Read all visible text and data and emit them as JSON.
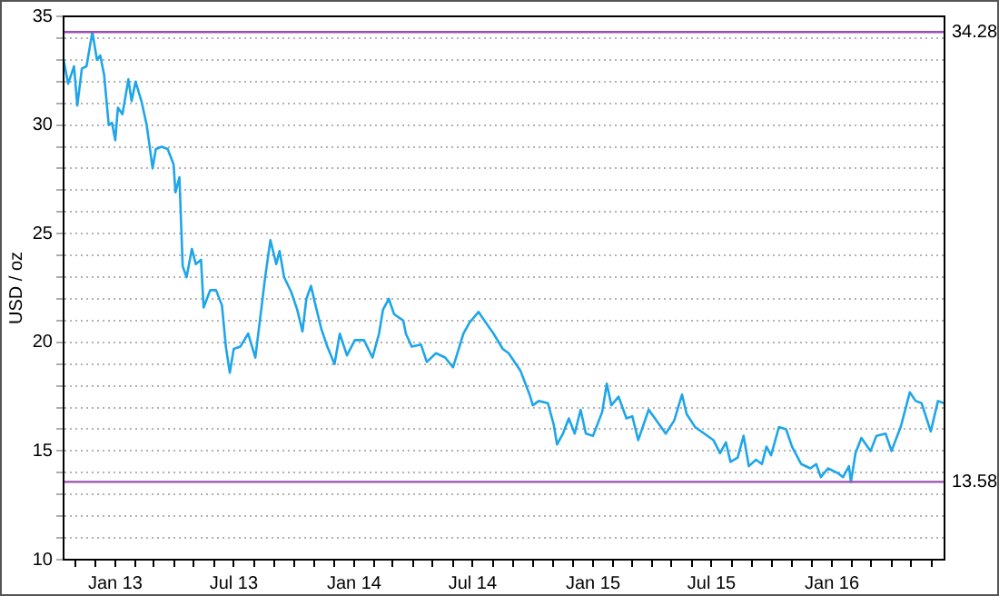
{
  "chart_data": {
    "type": "line",
    "ylabel": "USD / oz",
    "x": [
      "2012-10-14",
      "2012-10-21",
      "2012-10-30",
      "2012-11-04",
      "2012-11-11",
      "2012-11-18",
      "2012-11-27",
      "2012-12-04",
      "2012-12-09",
      "2012-12-15",
      "2012-12-22",
      "2012-12-27",
      "2013-01-01",
      "2013-01-05",
      "2013-01-12",
      "2013-01-21",
      "2013-01-26",
      "2013-02-01",
      "2013-02-10",
      "2013-02-18",
      "2013-02-23",
      "2013-02-27",
      "2013-03-04",
      "2013-03-13",
      "2013-03-22",
      "2013-03-31",
      "2013-04-03",
      "2013-04-09",
      "2013-04-14",
      "2013-04-20",
      "2013-04-28",
      "2013-05-04",
      "2013-05-12",
      "2013-05-16",
      "2013-05-26",
      "2013-06-04",
      "2013-06-13",
      "2013-06-19",
      "2013-06-25",
      "2013-07-01",
      "2013-07-11",
      "2013-07-23",
      "2013-08-03",
      "2013-08-12",
      "2013-08-18",
      "2013-08-26",
      "2013-09-04",
      "2013-09-09",
      "2013-09-16",
      "2013-09-27",
      "2013-10-06",
      "2013-10-14",
      "2013-10-20",
      "2013-10-27",
      "2013-11-03",
      "2013-11-12",
      "2013-11-21",
      "2013-12-02",
      "2013-12-10",
      "2013-12-21",
      "2014-01-02",
      "2014-01-16",
      "2014-01-29",
      "2014-02-08",
      "2014-02-14",
      "2014-02-23",
      "2014-03-03",
      "2014-03-17",
      "2014-03-21",
      "2014-03-30",
      "2014-04-13",
      "2014-04-22",
      "2014-05-06",
      "2014-05-20",
      "2014-06-01",
      "2014-06-17",
      "2014-06-26",
      "2014-07-10",
      "2014-07-19",
      "2014-08-02",
      "2014-08-16",
      "2014-08-25",
      "2014-09-12",
      "2014-09-26",
      "2014-10-01",
      "2014-10-10",
      "2014-10-24",
      "2014-11-02",
      "2014-11-07",
      "2014-11-16",
      "2014-11-25",
      "2014-12-04",
      "2014-12-13",
      "2014-12-21",
      "2015-01-01",
      "2015-01-15",
      "2015-01-22",
      "2015-01-29",
      "2015-02-09",
      "2015-02-21",
      "2015-03-02",
      "2015-03-11",
      "2015-03-27",
      "2015-04-08",
      "2015-04-22",
      "2015-05-05",
      "2015-05-17",
      "2015-05-24",
      "2015-06-06",
      "2015-06-20",
      "2015-07-04",
      "2015-07-14",
      "2015-07-23",
      "2015-07-30",
      "2015-08-10",
      "2015-08-19",
      "2015-08-27",
      "2015-09-07",
      "2015-09-16",
      "2015-09-23",
      "2015-09-30",
      "2015-10-12",
      "2015-10-23",
      "2015-11-01",
      "2015-11-15",
      "2015-11-29",
      "2015-12-08",
      "2015-12-15",
      "2015-12-26",
      "2016-01-09",
      "2016-01-18",
      "2016-01-27",
      "2016-01-30",
      "2016-02-06",
      "2016-02-15",
      "2016-02-29",
      "2016-03-09",
      "2016-03-23",
      "2016-04-01",
      "2016-04-15",
      "2016-04-29",
      "2016-05-08",
      "2016-05-17",
      "2016-05-31",
      "2016-06-11",
      "2016-06-20"
    ],
    "series": [
      {
        "color": "#1ea5ea",
        "values": [
          33.0,
          31.9,
          32.7,
          30.9,
          32.6,
          32.7,
          34.28,
          33.0,
          33.2,
          32.3,
          30.0,
          30.1,
          29.3,
          30.8,
          30.5,
          32.1,
          31.1,
          32.0,
          31.1,
          30.0,
          28.9,
          28.0,
          28.9,
          29.0,
          28.9,
          28.2,
          26.9,
          27.6,
          23.5,
          23.0,
          24.3,
          23.6,
          23.8,
          21.6,
          22.4,
          22.4,
          21.7,
          19.8,
          18.6,
          19.7,
          19.8,
          20.4,
          19.3,
          21.5,
          23.0,
          24.7,
          23.6,
          24.2,
          23.0,
          22.3,
          21.5,
          20.5,
          22.0,
          22.6,
          21.7,
          20.6,
          19.8,
          19.0,
          20.4,
          19.4,
          20.1,
          20.1,
          19.3,
          20.4,
          21.5,
          22.0,
          21.3,
          21.0,
          20.4,
          19.8,
          19.9,
          19.1,
          19.5,
          19.3,
          18.85,
          20.4,
          20.9,
          21.4,
          21.0,
          20.4,
          19.7,
          19.5,
          18.7,
          17.6,
          17.1,
          17.3,
          17.2,
          16.2,
          15.3,
          15.8,
          16.5,
          15.8,
          16.9,
          15.8,
          15.7,
          16.8,
          18.1,
          17.1,
          17.5,
          16.5,
          16.6,
          15.5,
          16.9,
          16.4,
          15.8,
          16.4,
          17.6,
          16.7,
          16.1,
          15.8,
          15.5,
          14.9,
          15.4,
          14.5,
          14.7,
          15.7,
          14.3,
          14.6,
          14.4,
          15.2,
          14.8,
          16.1,
          16.0,
          15.2,
          14.4,
          14.2,
          14.4,
          13.8,
          14.2,
          14.0,
          13.8,
          14.3,
          13.58,
          14.9,
          15.6,
          15.0,
          15.7,
          15.8,
          15.0,
          16.1,
          17.7,
          17.3,
          17.2,
          15.9,
          17.3,
          17.2
        ]
      }
    ],
    "xlim": [
      "2012-10-14",
      "2016-06-21"
    ],
    "xticks": [
      {
        "value": "2012-11-01",
        "label": null
      },
      {
        "value": "2012-12-01",
        "label": null
      },
      {
        "value": "2013-01-01",
        "label": "Jan 13"
      },
      {
        "value": "2013-02-01",
        "label": null
      },
      {
        "value": "2013-03-01",
        "label": null
      },
      {
        "value": "2013-04-01",
        "label": null
      },
      {
        "value": "2013-05-01",
        "label": null
      },
      {
        "value": "2013-06-01",
        "label": null
      },
      {
        "value": "2013-07-01",
        "label": "Jul 13"
      },
      {
        "value": "2013-08-01",
        "label": null
      },
      {
        "value": "2013-09-01",
        "label": null
      },
      {
        "value": "2013-10-01",
        "label": null
      },
      {
        "value": "2013-11-01",
        "label": null
      },
      {
        "value": "2013-12-01",
        "label": null
      },
      {
        "value": "2014-01-01",
        "label": "Jan 14"
      },
      {
        "value": "2014-02-01",
        "label": null
      },
      {
        "value": "2014-03-01",
        "label": null
      },
      {
        "value": "2014-04-01",
        "label": null
      },
      {
        "value": "2014-05-01",
        "label": null
      },
      {
        "value": "2014-06-01",
        "label": null
      },
      {
        "value": "2014-07-01",
        "label": "Jul 14"
      },
      {
        "value": "2014-08-01",
        "label": null
      },
      {
        "value": "2014-09-01",
        "label": null
      },
      {
        "value": "2014-10-01",
        "label": null
      },
      {
        "value": "2014-11-01",
        "label": null
      },
      {
        "value": "2014-12-01",
        "label": null
      },
      {
        "value": "2015-01-01",
        "label": "Jan 15"
      },
      {
        "value": "2015-02-01",
        "label": null
      },
      {
        "value": "2015-03-01",
        "label": null
      },
      {
        "value": "2015-04-01",
        "label": null
      },
      {
        "value": "2015-05-01",
        "label": null
      },
      {
        "value": "2015-06-01",
        "label": null
      },
      {
        "value": "2015-07-01",
        "label": "Jul 15"
      },
      {
        "value": "2015-08-01",
        "label": null
      },
      {
        "value": "2015-09-01",
        "label": null
      },
      {
        "value": "2015-10-01",
        "label": null
      },
      {
        "value": "2015-11-01",
        "label": null
      },
      {
        "value": "2015-12-01",
        "label": null
      },
      {
        "value": "2016-01-01",
        "label": "Jan 16"
      },
      {
        "value": "2016-02-01",
        "label": null
      },
      {
        "value": "2016-03-01",
        "label": null
      },
      {
        "value": "2016-04-01",
        "label": null
      },
      {
        "value": "2016-05-01",
        "label": null
      },
      {
        "value": "2016-06-01",
        "label": null
      }
    ],
    "ylim": [
      10,
      35
    ],
    "yticks": [
      10,
      {
        "value": 11,
        "label": null
      },
      {
        "value": 12,
        "label": null
      },
      {
        "value": 13,
        "label": null
      },
      {
        "value": 14,
        "label": null
      },
      15,
      {
        "value": 16,
        "label": null
      },
      {
        "value": 17,
        "label": null
      },
      {
        "value": 18,
        "label": null
      },
      {
        "value": 19,
        "label": null
      },
      20,
      {
        "value": 21,
        "label": null
      },
      {
        "value": 22,
        "label": null
      },
      {
        "value": 23,
        "label": null
      },
      {
        "value": 24,
        "label": null
      },
      25,
      {
        "value": 26,
        "label": null
      },
      {
        "value": 27,
        "label": null
      },
      {
        "value": 28,
        "label": null
      },
      {
        "value": 29,
        "label": null
      },
      30,
      {
        "value": 31,
        "label": null
      },
      {
        "value": 32,
        "label": null
      },
      {
        "value": 33,
        "label": null
      },
      {
        "value": 34,
        "label": null
      },
      35
    ],
    "ref_lines": [
      {
        "axis": "y",
        "value": 34.28,
        "label": "34.28",
        "color": "#9b4fb0"
      },
      {
        "axis": "y",
        "value": 13.58,
        "label": "13.58",
        "color": "#9b4fb0"
      }
    ],
    "grid": "y",
    "legend": false,
    "marker": "none",
    "line_style": "solid"
  }
}
